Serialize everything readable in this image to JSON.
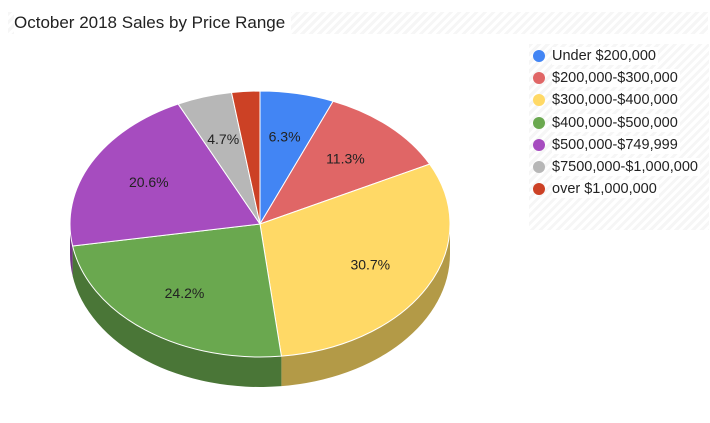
{
  "chart_data": {
    "type": "pie",
    "title": "October 2018 Sales by Price Range",
    "three_d": true,
    "legend_position": "right",
    "slices": [
      {
        "label": "Under $200,000",
        "value": 6.3,
        "display": "6.3%",
        "color": "#4285f4",
        "side_color": "#2e5daa"
      },
      {
        "label": "$200,000-$300,000",
        "value": 11.3,
        "display": "11.3%",
        "color": "#e06666",
        "side_color": "#9e4848"
      },
      {
        "label": "$300,000-$400,000",
        "value": 30.7,
        "display": "30.7%",
        "color": "#ffd966",
        "side_color": "#b39a47"
      },
      {
        "label": "$400,000-$500,000",
        "value": 24.2,
        "display": "24.2%",
        "color": "#6aa84f",
        "side_color": "#4a7637"
      },
      {
        "label": "$500,000-$749,999",
        "value": 20.6,
        "display": "20.6%",
        "color": "#a64cbf",
        "side_color": "#743586"
      },
      {
        "label": "$7500,000-$1,000,000",
        "value": 4.7,
        "display": "4.7%",
        "color": "#b7b7b7",
        "side_color": "#808080"
      },
      {
        "label": "over $1,000,000",
        "value": 2.4,
        "display": "",
        "color": "#cc4125",
        "side_color": "#8f2e1a"
      }
    ]
  }
}
